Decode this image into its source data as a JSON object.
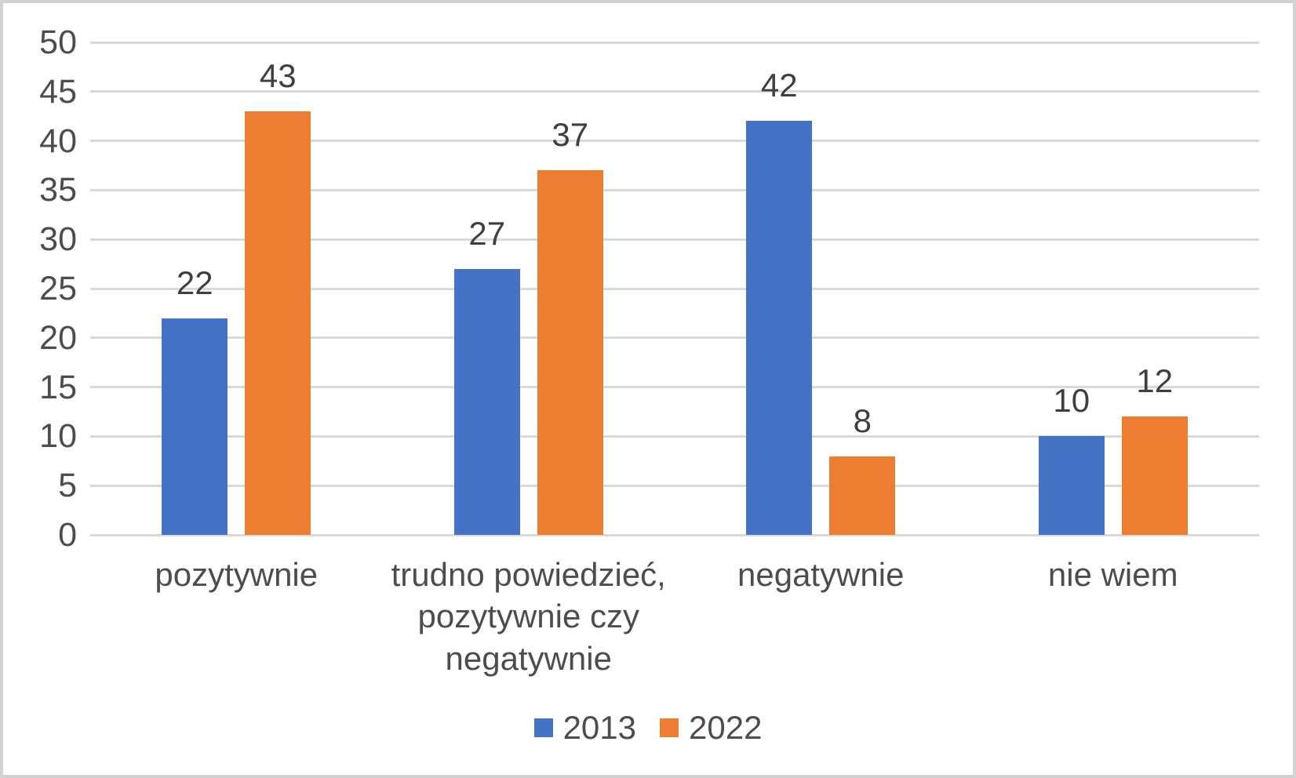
{
  "chart_data": {
    "type": "bar",
    "categories": [
      "pozytywnie",
      "trudno powiedzieć, pozytywnie czy negatywnie",
      "negatywnie",
      "nie wiem"
    ],
    "series": [
      {
        "name": "2013",
        "color": "#4472C4",
        "values": [
          22,
          27,
          42,
          10
        ]
      },
      {
        "name": "2022",
        "color": "#ED7D31",
        "values": [
          43,
          37,
          8,
          12
        ]
      }
    ],
    "title": "",
    "xlabel": "",
    "ylabel": "",
    "ylim": [
      0,
      50
    ],
    "ytick_step": 5,
    "yticks": [
      "0",
      "5",
      "10",
      "15",
      "20",
      "25",
      "30",
      "35",
      "40",
      "45",
      "50"
    ],
    "grid": true,
    "data_labels": true,
    "legend_position": "bottom",
    "colors": {
      "gridline": "#d9d9d9",
      "axis_text": "#4d4d4d",
      "data_label_text": "#3f3f3f",
      "legend_text": "#4d4d4d",
      "background": "#ffffff",
      "frame_border": "#d2d2d2"
    }
  }
}
